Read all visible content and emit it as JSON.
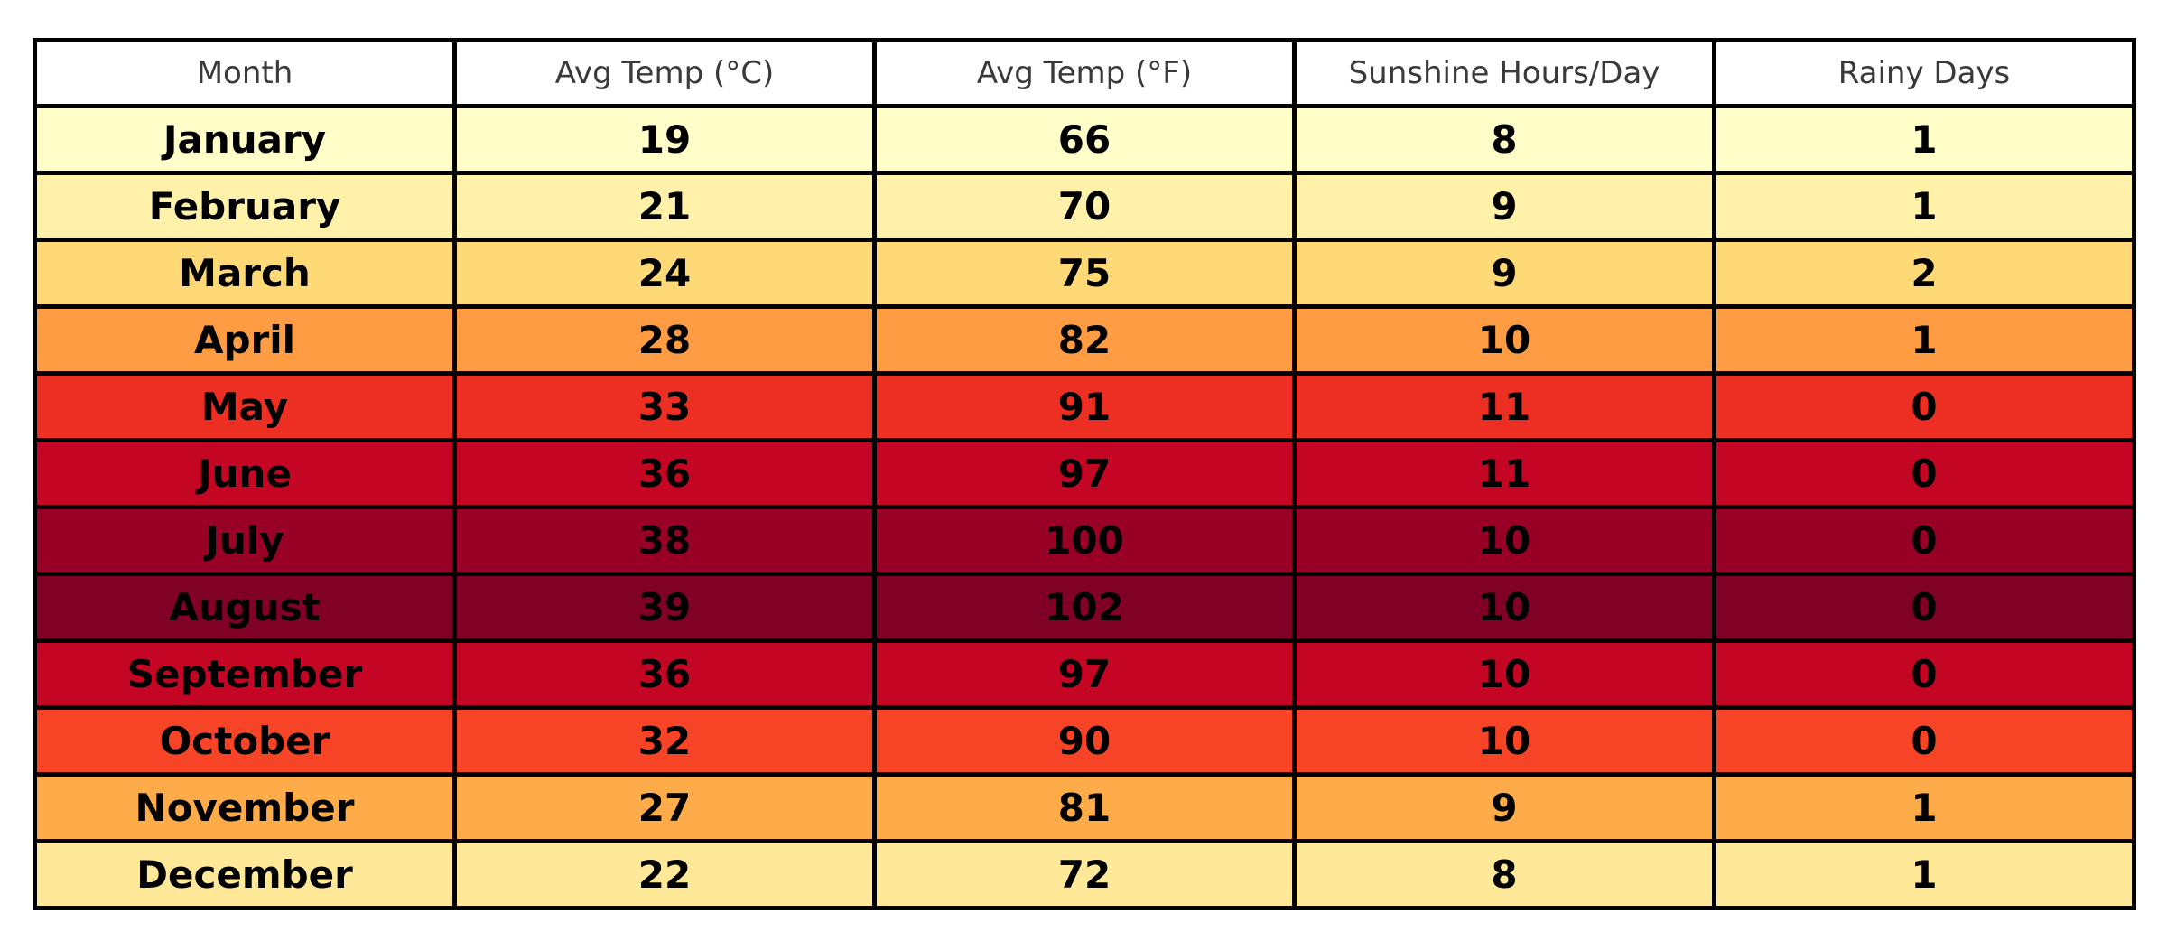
{
  "table": {
    "columns": [
      {
        "label": "Month"
      },
      {
        "label": "Avg Temp (°C)"
      },
      {
        "label": "Avg Temp (°F)"
      },
      {
        "label": "Sunshine Hours/Day"
      },
      {
        "label": "Rainy Days"
      }
    ],
    "rows": [
      {
        "month": "January",
        "temp_c": "19",
        "temp_f": "66",
        "sunshine": "8",
        "rainy": "1",
        "color": "#FFFDC8"
      },
      {
        "month": "February",
        "temp_c": "21",
        "temp_f": "70",
        "sunshine": "9",
        "rainy": "1",
        "color": "#FFF1A9"
      },
      {
        "month": "March",
        "temp_c": "24",
        "temp_f": "75",
        "sunshine": "9",
        "rainy": "2",
        "color": "#FED976"
      },
      {
        "month": "April",
        "temp_c": "28",
        "temp_f": "82",
        "sunshine": "10",
        "rainy": "1",
        "color": "#FD9C42"
      },
      {
        "month": "May",
        "temp_c": "33",
        "temp_f": "91",
        "sunshine": "11",
        "rainy": "0",
        "color": "#ED2E22"
      },
      {
        "month": "June",
        "temp_c": "36",
        "temp_f": "97",
        "sunshine": "11",
        "rainy": "0",
        "color": "#C50524"
      },
      {
        "month": "July",
        "temp_c": "38",
        "temp_f": "100",
        "sunshine": "10",
        "rainy": "0",
        "color": "#980026"
      },
      {
        "month": "August",
        "temp_c": "39",
        "temp_f": "102",
        "sunshine": "10",
        "rainy": "0",
        "color": "#800026"
      },
      {
        "month": "September",
        "temp_c": "36",
        "temp_f": "97",
        "sunshine": "10",
        "rainy": "0",
        "color": "#C50524"
      },
      {
        "month": "October",
        "temp_c": "32",
        "temp_f": "90",
        "sunshine": "10",
        "rainy": "0",
        "color": "#F74427"
      },
      {
        "month": "November",
        "temp_c": "27",
        "temp_f": "81",
        "sunshine": "9",
        "rainy": "1",
        "color": "#FEAB49"
      },
      {
        "month": "December",
        "temp_c": "22",
        "temp_f": "72",
        "sunshine": "8",
        "rainy": "1",
        "color": "#FFE998"
      }
    ],
    "style": {
      "border_color": "#000000",
      "header_text_color": "#3a3a3a",
      "cell_text_color": "#000000"
    }
  },
  "chart_data": {
    "type": "table",
    "title": "",
    "columns": [
      "Month",
      "Avg Temp (°C)",
      "Avg Temp (°F)",
      "Sunshine Hours/Day",
      "Rainy Days"
    ],
    "rows": [
      [
        "January",
        19,
        66,
        8,
        1
      ],
      [
        "February",
        21,
        70,
        9,
        1
      ],
      [
        "March",
        24,
        75,
        9,
        2
      ],
      [
        "April",
        28,
        82,
        10,
        1
      ],
      [
        "May",
        33,
        91,
        11,
        0
      ],
      [
        "June",
        36,
        97,
        11,
        0
      ],
      [
        "July",
        38,
        100,
        10,
        0
      ],
      [
        "August",
        39,
        102,
        10,
        0
      ],
      [
        "September",
        36,
        97,
        10,
        0
      ],
      [
        "October",
        32,
        90,
        10,
        0
      ],
      [
        "November",
        27,
        81,
        9,
        1
      ],
      [
        "December",
        22,
        72,
        8,
        1
      ]
    ],
    "row_colors_by_temp": [
      "#FFFDC8",
      "#FFF1A9",
      "#FED976",
      "#FD9C42",
      "#ED2E22",
      "#C50524",
      "#980026",
      "#800026",
      "#C50524",
      "#F74427",
      "#FEAB49",
      "#FFE998"
    ],
    "colormap": "YlOrRd heat shading mapped to Avg Temp, range 19–39 °C",
    "legend": "none",
    "grid": "solid black cell borders"
  }
}
